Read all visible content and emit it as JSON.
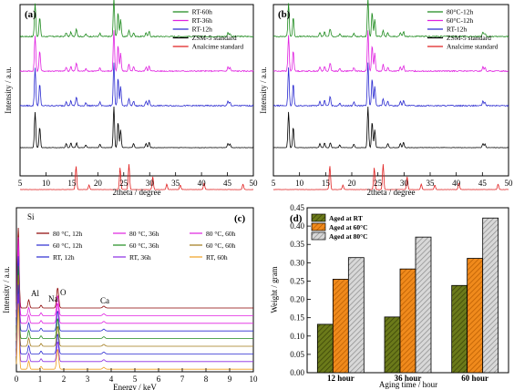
{
  "colors": {
    "green": "#1f8b1f",
    "magenta": "#e020e0",
    "blue": "#2a2ad0",
    "black": "#000000",
    "red": "#e02020",
    "darkred": "#8b0000",
    "orange": "#ff8c00",
    "purple": "#8a2be2",
    "gold": "#f0a020",
    "olive": "#6b7a1a",
    "barorange": "#f08a1c",
    "gray": "#c8c8c8"
  },
  "chart_data": [
    {
      "type": "line",
      "panel_label": "(a)",
      "xlabel": "2theta / degree",
      "ylabel": "Intensity / a.u.",
      "xlim": [
        5,
        50
      ],
      "xticks": [
        "5",
        "10",
        "15",
        "20",
        "25",
        "30",
        "35",
        "40",
        "45",
        "50"
      ],
      "series": [
        {
          "name": "RT-60h",
          "color": "#1f8b1f"
        },
        {
          "name": "RT-36h",
          "color": "#e020e0"
        },
        {
          "name": "RT-12h",
          "color": "#2a2ad0"
        },
        {
          "name": "ZSM-5 standard",
          "color": "#000000"
        },
        {
          "name": "Analcime standard",
          "color": "#e02020"
        }
      ]
    },
    {
      "type": "line",
      "panel_label": "(b)",
      "xlabel": "2theta / degree",
      "ylabel": "Intensity / a.u.",
      "xlim": [
        5,
        50
      ],
      "xticks": [
        "5",
        "10",
        "15",
        "20",
        "25",
        "30",
        "35",
        "40",
        "45",
        "50"
      ],
      "series": [
        {
          "name": "80°C-12h",
          "color": "#1f8b1f"
        },
        {
          "name": "60°C-12h",
          "color": "#e020e0"
        },
        {
          "name": "RT-12h",
          "color": "#2a2ad0"
        },
        {
          "name": "ZSM-5 standard",
          "color": "#000000"
        },
        {
          "name": "Analcime standard",
          "color": "#e02020"
        }
      ]
    },
    {
      "type": "line",
      "panel_label": "(c)",
      "xlabel": "Energy / keV",
      "ylabel": "Intensity / a.u.",
      "xlim": [
        0,
        10
      ],
      "xticks": [
        "0",
        "1",
        "2",
        "3",
        "4",
        "5",
        "6",
        "7",
        "8",
        "9",
        "10"
      ],
      "annotations": [
        "Si",
        "Al",
        "Na",
        "O",
        "Ca"
      ],
      "series": [
        {
          "name": "80 °C, 12h",
          "color": "#8b0000"
        },
        {
          "name": "80 °C, 36h",
          "color": "#e020e0"
        },
        {
          "name": "80 °C, 60h",
          "color": "#e020e0"
        },
        {
          "name": "60 °C, 12h",
          "color": "#2a2ad0"
        },
        {
          "name": "60 °C, 36h",
          "color": "#1f8b1f"
        },
        {
          "name": "60 °C, 60h",
          "color": "#a07818"
        },
        {
          "name": "RT, 12h",
          "color": "#2a2ad0"
        },
        {
          "name": "RT, 36h",
          "color": "#8a2be2"
        },
        {
          "name": "RT, 60h",
          "color": "#f0a020"
        }
      ]
    },
    {
      "type": "bar",
      "panel_label": "(d)",
      "xlabel": "Aging time / hour",
      "ylabel": "Weight / gram",
      "categories": [
        "12 hour",
        "36 hour",
        "60 hour"
      ],
      "ylim": [
        0.0,
        0.45
      ],
      "yticks": [
        "0.00",
        "0.05",
        "0.10",
        "0.15",
        "0.20",
        "0.25",
        "0.30",
        "0.35",
        "0.40",
        "0.45"
      ],
      "series": [
        {
          "name": "Aged at RT",
          "values": [
            0.132,
            0.152,
            0.238
          ]
        },
        {
          "name": "Aged at 60°C",
          "values": [
            0.255,
            0.283,
            0.312
          ]
        },
        {
          "name": "Aged at 80°C",
          "values": [
            0.314,
            0.37,
            0.422
          ]
        }
      ]
    }
  ]
}
